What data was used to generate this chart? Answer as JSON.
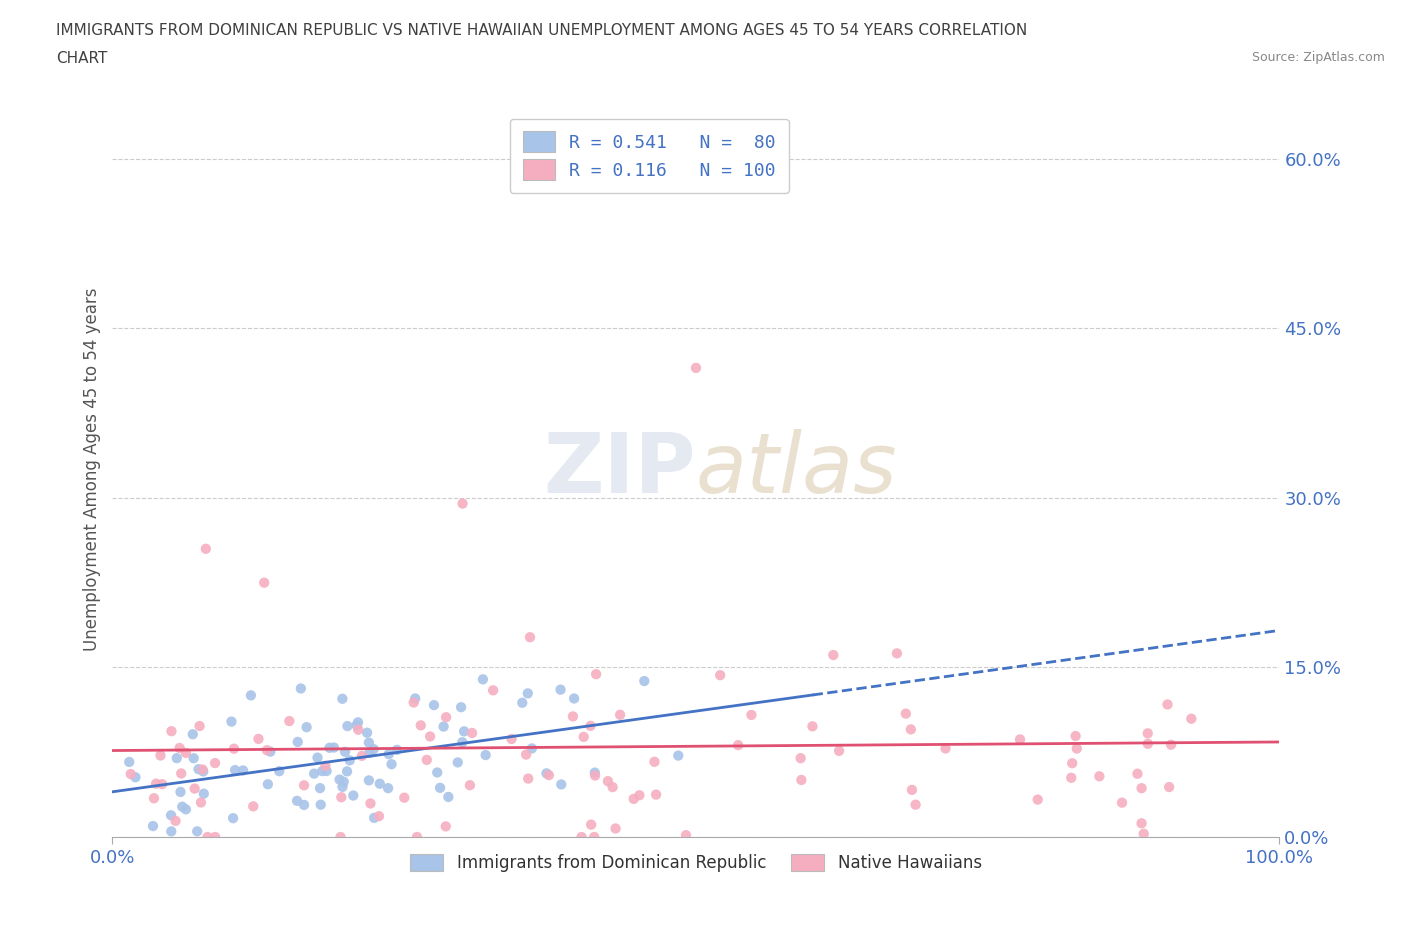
{
  "title_line1": "IMMIGRANTS FROM DOMINICAN REPUBLIC VS NATIVE HAWAIIAN UNEMPLOYMENT AMONG AGES 45 TO 54 YEARS CORRELATION",
  "title_line2": "CHART",
  "source": "Source: ZipAtlas.com",
  "ylabel": "Unemployment Among Ages 45 to 54 years",
  "xlim": [
    0.0,
    1.0
  ],
  "ylim": [
    0.0,
    0.65
  ],
  "yticks": [
    0.0,
    0.15,
    0.3,
    0.45,
    0.6
  ],
  "ytick_labels": [
    "0.0%",
    "15.0%",
    "30.0%",
    "45.0%",
    "60.0%"
  ],
  "xticks": [
    0.0,
    1.0
  ],
  "xtick_labels": [
    "0.0%",
    "100.0%"
  ],
  "blue_R": 0.541,
  "blue_N": 80,
  "pink_R": 0.116,
  "pink_N": 100,
  "blue_color": "#a8c4e8",
  "pink_color": "#f5aec0",
  "blue_line_color": "#4472c4",
  "pink_line_color": "#e05070",
  "legend_blue_label": "Immigrants from Dominican Republic",
  "legend_pink_label": "Native Hawaiians",
  "watermark_zip": "ZIP",
  "watermark_atlas": "atlas",
  "background_color": "#ffffff",
  "grid_color": "#cccccc",
  "title_color": "#404040",
  "axis_label_color": "#555555",
  "tick_label_color": "#4472c4",
  "source_color": "#888888"
}
